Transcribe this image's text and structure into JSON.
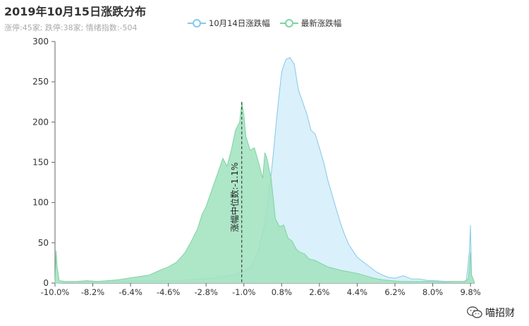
{
  "page": {
    "title": "2019年10月15日涨跌分布",
    "subtitle": "涨停:45家; 跌停:38家; 情绪指数:-504",
    "watermark": "喵招财"
  },
  "colors": {
    "series1_line": "#83c9ec",
    "series1_fill": "#d6eefa",
    "series2_line": "#7dd4a0",
    "series2_fill": "#a3e2c0",
    "axis": "#666666"
  },
  "chart_data": {
    "type": "area",
    "title": "2019年10月15日涨跌分布",
    "xlabel": "",
    "ylabel": "",
    "xlim": [
      -10.0,
      10.0
    ],
    "ylim": [
      0,
      300
    ],
    "x_ticks": [
      "-10.0%",
      "-8.2%",
      "-6.4%",
      "-4.6%",
      "-2.8%",
      "-1.0%",
      "0.8%",
      "2.6%",
      "4.4%",
      "6.2%",
      "8.0%",
      "9.8%"
    ],
    "y_ticks": [
      0,
      50,
      100,
      150,
      200,
      250,
      300
    ],
    "legend_position": "top-center",
    "annotation": {
      "text": "涨幅中位数:-1.1%",
      "x": -1.1
    },
    "series": [
      {
        "name": "10月14日涨跌幅",
        "points": [
          [
            -10.0,
            0
          ],
          [
            -9.0,
            1
          ],
          [
            -8.0,
            2
          ],
          [
            -7.0,
            2
          ],
          [
            -6.0,
            3
          ],
          [
            -5.0,
            3
          ],
          [
            -4.0,
            3
          ],
          [
            -3.5,
            4
          ],
          [
            -3.0,
            5
          ],
          [
            -2.5,
            6
          ],
          [
            -2.0,
            8
          ],
          [
            -1.5,
            10
          ],
          [
            -1.0,
            14
          ],
          [
            -0.6,
            22
          ],
          [
            -0.3,
            40
          ],
          [
            0.0,
            75
          ],
          [
            0.2,
            110
          ],
          [
            0.4,
            160
          ],
          [
            0.6,
            215
          ],
          [
            0.8,
            262
          ],
          [
            1.0,
            278
          ],
          [
            1.2,
            280
          ],
          [
            1.4,
            272
          ],
          [
            1.6,
            240
          ],
          [
            1.8,
            225
          ],
          [
            2.0,
            210
          ],
          [
            2.2,
            190
          ],
          [
            2.4,
            185
          ],
          [
            2.6,
            168
          ],
          [
            2.8,
            150
          ],
          [
            3.0,
            128
          ],
          [
            3.2,
            110
          ],
          [
            3.4,
            92
          ],
          [
            3.6,
            75
          ],
          [
            3.8,
            60
          ],
          [
            4.0,
            48
          ],
          [
            4.2,
            40
          ],
          [
            4.4,
            32
          ],
          [
            4.6,
            28
          ],
          [
            4.8,
            24
          ],
          [
            5.0,
            20
          ],
          [
            5.3,
            14
          ],
          [
            5.6,
            10
          ],
          [
            5.9,
            7
          ],
          [
            6.2,
            6
          ],
          [
            6.6,
            9
          ],
          [
            7.0,
            5
          ],
          [
            7.4,
            5
          ],
          [
            7.8,
            3
          ],
          [
            8.2,
            3
          ],
          [
            8.6,
            2
          ],
          [
            9.0,
            2
          ],
          [
            9.4,
            1
          ],
          [
            9.6,
            2
          ],
          [
            9.75,
            40
          ],
          [
            9.8,
            72
          ],
          [
            9.85,
            10
          ],
          [
            10.0,
            0
          ]
        ]
      },
      {
        "name": "最新涨跌幅",
        "points": [
          [
            -10.0,
            0
          ],
          [
            -9.95,
            40
          ],
          [
            -9.9,
            20
          ],
          [
            -9.8,
            3
          ],
          [
            -9.5,
            2
          ],
          [
            -9.0,
            2
          ],
          [
            -8.5,
            3
          ],
          [
            -8.0,
            2
          ],
          [
            -7.5,
            3
          ],
          [
            -7.0,
            4
          ],
          [
            -6.5,
            6
          ],
          [
            -6.0,
            8
          ],
          [
            -5.5,
            10
          ],
          [
            -5.0,
            16
          ],
          [
            -4.6,
            20
          ],
          [
            -4.2,
            26
          ],
          [
            -3.8,
            38
          ],
          [
            -3.5,
            52
          ],
          [
            -3.2,
            68
          ],
          [
            -3.0,
            85
          ],
          [
            -2.8,
            95
          ],
          [
            -2.6,
            110
          ],
          [
            -2.4,
            125
          ],
          [
            -2.2,
            140
          ],
          [
            -2.0,
            155
          ],
          [
            -1.8,
            145
          ],
          [
            -1.6,
            165
          ],
          [
            -1.4,
            190
          ],
          [
            -1.2,
            200
          ],
          [
            -1.1,
            225
          ],
          [
            -1.0,
            208
          ],
          [
            -0.9,
            182
          ],
          [
            -0.7,
            165
          ],
          [
            -0.5,
            168
          ],
          [
            -0.3,
            150
          ],
          [
            -0.1,
            130
          ],
          [
            0.0,
            162
          ],
          [
            0.1,
            155
          ],
          [
            0.3,
            130
          ],
          [
            0.5,
            80
          ],
          [
            0.7,
            70
          ],
          [
            0.9,
            72
          ],
          [
            1.1,
            56
          ],
          [
            1.3,
            52
          ],
          [
            1.5,
            42
          ],
          [
            1.7,
            38
          ],
          [
            1.9,
            36
          ],
          [
            2.1,
            30
          ],
          [
            2.4,
            28
          ],
          [
            2.7,
            24
          ],
          [
            3.0,
            20
          ],
          [
            3.3,
            18
          ],
          [
            3.6,
            16
          ],
          [
            4.0,
            14
          ],
          [
            4.4,
            12
          ],
          [
            4.8,
            9
          ],
          [
            5.2,
            6
          ],
          [
            5.6,
            4
          ],
          [
            6.0,
            3
          ],
          [
            6.5,
            2
          ],
          [
            7.0,
            2
          ],
          [
            7.5,
            2
          ],
          [
            8.0,
            2
          ],
          [
            8.5,
            1
          ],
          [
            9.0,
            2
          ],
          [
            9.5,
            2
          ],
          [
            9.7,
            5
          ],
          [
            9.8,
            38
          ],
          [
            9.85,
            10
          ],
          [
            10.0,
            0
          ]
        ]
      }
    ]
  }
}
